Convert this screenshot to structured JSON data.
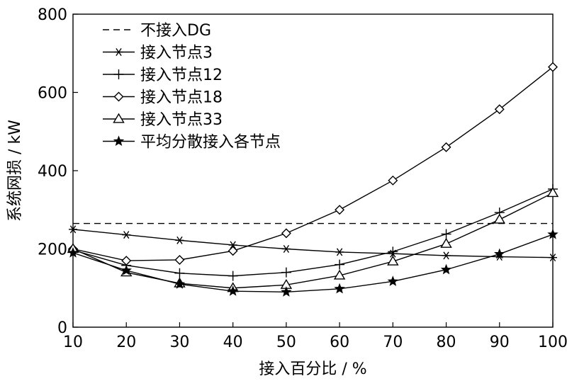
{
  "chart_data": {
    "type": "line",
    "xlabel": "接入百分比 / %",
    "ylabel": "系统网损 / kW",
    "xlim": [
      10,
      100
    ],
    "ylim": [
      0,
      800
    ],
    "x_ticks": [
      10,
      20,
      30,
      40,
      50,
      60,
      70,
      80,
      90,
      100
    ],
    "y_ticks": [
      0,
      200,
      400,
      600,
      800
    ],
    "x": [
      10,
      20,
      30,
      40,
      50,
      60,
      70,
      80,
      90,
      100
    ],
    "grid": false,
    "legend_position": "top-left",
    "series": [
      {
        "name": "不接入DG",
        "marker": "none",
        "dash": "dashed",
        "values": [
          265,
          265,
          265,
          265,
          265,
          265,
          265,
          265,
          265,
          265
        ]
      },
      {
        "name": "接入节点3",
        "marker": "asterisk",
        "dash": "solid",
        "values": [
          250,
          236,
          222,
          210,
          200,
          192,
          188,
          183,
          180,
          178
        ]
      },
      {
        "name": "接入节点12",
        "marker": "plus",
        "dash": "solid",
        "values": [
          197,
          158,
          138,
          131,
          140,
          160,
          193,
          238,
          293,
          353
        ]
      },
      {
        "name": "接入节点18",
        "marker": "diamond",
        "dash": "solid",
        "values": [
          200,
          170,
          172,
          195,
          240,
          300,
          375,
          460,
          557,
          665
        ]
      },
      {
        "name": "接入节点33",
        "marker": "triangle",
        "dash": "solid",
        "values": [
          200,
          140,
          112,
          100,
          108,
          132,
          168,
          213,
          275,
          343
        ]
      },
      {
        "name": "平均分散接入各节点",
        "marker": "star",
        "dash": "solid",
        "values": [
          190,
          145,
          110,
          92,
          90,
          98,
          117,
          147,
          187,
          237
        ]
      }
    ]
  }
}
